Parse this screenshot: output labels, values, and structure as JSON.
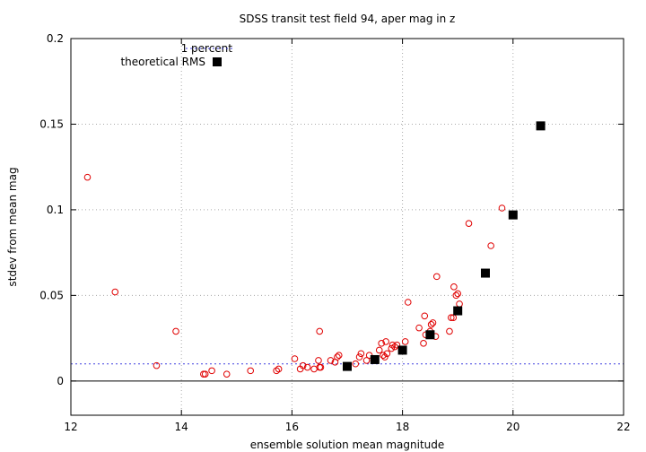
{
  "chart_data": {
    "type": "scatter",
    "title": "SDSS transit test field 94, aper mag in z",
    "xlabel": "ensemble solution mean magnitude",
    "ylabel": "stdev from mean mag",
    "xlim": [
      12,
      22
    ],
    "ylim": [
      -0.02,
      0.2
    ],
    "xticks": [
      12,
      14,
      16,
      18,
      20,
      22
    ],
    "xtick_labels": [
      "12",
      "14",
      "16",
      "18",
      "20",
      "22"
    ],
    "yticks": [
      0,
      0.05,
      0.1,
      0.15,
      0.2
    ],
    "ytick_labels": [
      "0",
      "0.05",
      "0.1",
      "0.15",
      "0.2"
    ],
    "grid": true,
    "legend_position": "top-left",
    "zero_line": 0,
    "colors": {
      "points": "#e00000",
      "one_percent": "#4040e0",
      "theoretical": "#000000"
    },
    "series": [
      {
        "name": "",
        "marker": "open-circle",
        "x": [
          12.3,
          12.8,
          13.55,
          13.9,
          14.4,
          14.43,
          14.55,
          14.82,
          15.25,
          15.72,
          15.76,
          16.05,
          16.15,
          16.2,
          16.28,
          16.4,
          16.48,
          16.5,
          16.5,
          16.52,
          16.7,
          16.78,
          16.82,
          16.85,
          17.15,
          17.22,
          17.25,
          17.35,
          17.4,
          17.5,
          17.58,
          17.62,
          17.65,
          17.68,
          17.7,
          17.72,
          17.8,
          17.82,
          17.86,
          17.9,
          18.05,
          18.1,
          18.3,
          18.38,
          18.4,
          18.42,
          18.5,
          18.52,
          18.55,
          18.6,
          18.62,
          18.85,
          18.88,
          18.92,
          18.93,
          18.97,
          19.0,
          19.03,
          19.2,
          19.8,
          19.6
        ],
        "y": [
          0.119,
          0.052,
          0.009,
          0.029,
          0.004,
          0.004,
          0.006,
          0.004,
          0.006,
          0.006,
          0.007,
          0.013,
          0.007,
          0.009,
          0.008,
          0.007,
          0.012,
          0.008,
          0.029,
          0.008,
          0.012,
          0.011,
          0.014,
          0.015,
          0.01,
          0.014,
          0.016,
          0.012,
          0.015,
          0.013,
          0.018,
          0.022,
          0.015,
          0.014,
          0.023,
          0.016,
          0.019,
          0.021,
          0.02,
          0.021,
          0.023,
          0.046,
          0.031,
          0.022,
          0.038,
          0.027,
          0.029,
          0.033,
          0.034,
          0.026,
          0.061,
          0.029,
          0.037,
          0.037,
          0.055,
          0.05,
          0.051,
          0.045,
          0.092,
          0.101,
          0.079
        ]
      },
      {
        "name": "1 percent",
        "marker": "dotted-line",
        "x": [
          12,
          22
        ],
        "y": [
          0.01,
          0.01
        ]
      },
      {
        "name": "theoretical RMS",
        "marker": "filled-square",
        "x": [
          17.0,
          17.5,
          18.0,
          18.5,
          19.0,
          19.5,
          20.0,
          20.5
        ],
        "y": [
          0.0085,
          0.0125,
          0.018,
          0.027,
          0.041,
          0.063,
          0.097,
          0.149
        ]
      }
    ]
  }
}
